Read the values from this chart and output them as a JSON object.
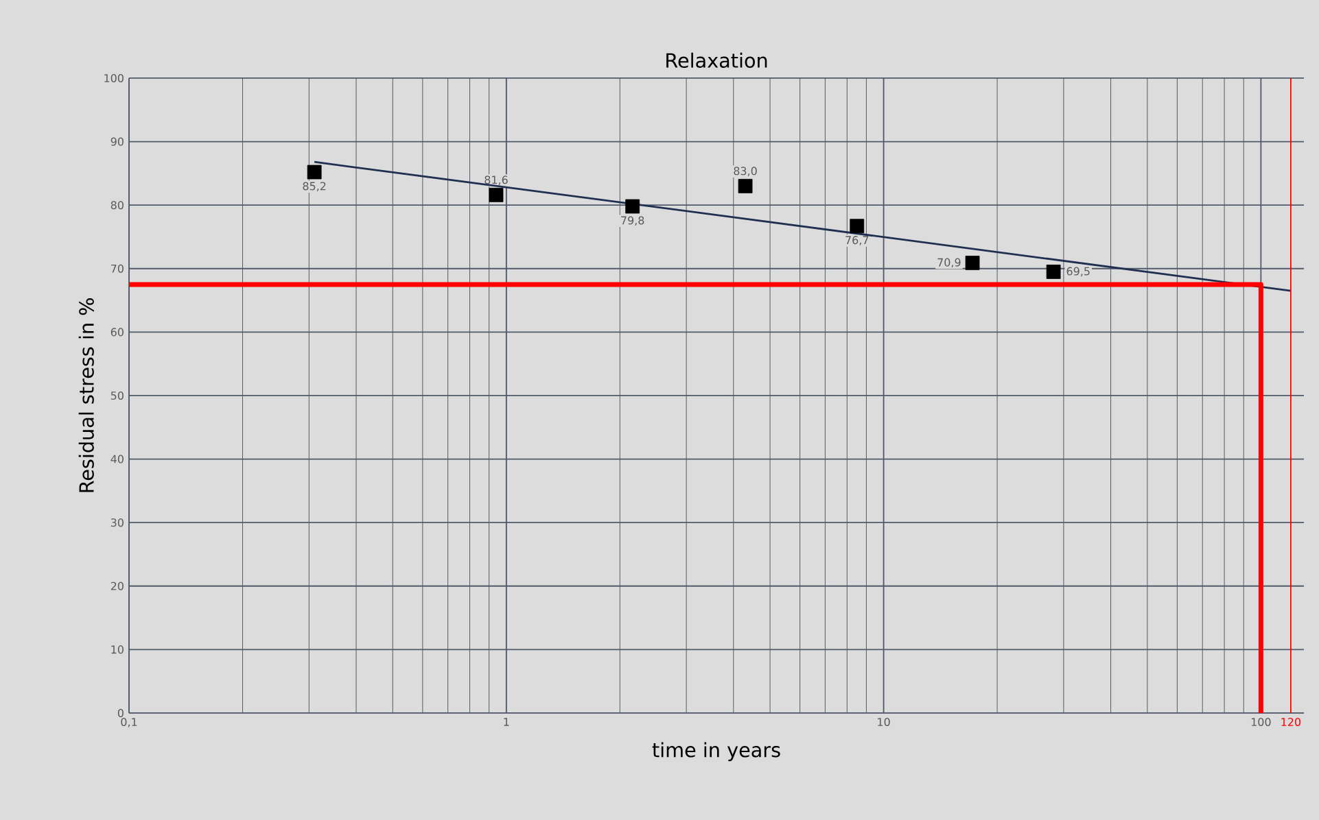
{
  "chart_data": {
    "type": "scatter",
    "title": "Relaxation",
    "xlabel": "time in years",
    "ylabel": "Residual stress  in %",
    "log": "x",
    "grid": true,
    "xlim": [
      0.1,
      130
    ],
    "ylim": [
      0,
      100
    ],
    "xticks": [
      {
        "value": 0.1,
        "label": "0,1"
      },
      1,
      10,
      100
    ],
    "yticks": [
      0,
      10,
      20,
      30,
      40,
      50,
      60,
      70,
      80,
      90,
      100
    ],
    "series": [
      {
        "color": "#000000",
        "marker": "square",
        "x": [
          0.31,
          0.94,
          2.16,
          4.3,
          8.5,
          17.2,
          28.2
        ],
        "values": [
          85.2,
          81.6,
          79.8,
          83.0,
          76.7,
          70.9,
          69.5
        ],
        "value_labels": [
          "85,2",
          "81,6",
          "79,8",
          "83,0",
          "76,7",
          "70,9",
          "69,5"
        ]
      },
      {
        "type": "line",
        "marker": "none",
        "color": "#1f2f4f",
        "x": [
          0.31,
          120
        ],
        "values": [
          86.8,
          66.5
        ]
      },
      {
        "type": "line",
        "marker": "none",
        "color": "#ff0000",
        "x": [
          0.1,
          100,
          100
        ],
        "values": [
          67.5,
          67.5,
          0
        ]
      }
    ],
    "ref_lines": [
      {
        "axis": "x",
        "value": 120,
        "label": "120",
        "color": "#ff0000"
      }
    ]
  }
}
